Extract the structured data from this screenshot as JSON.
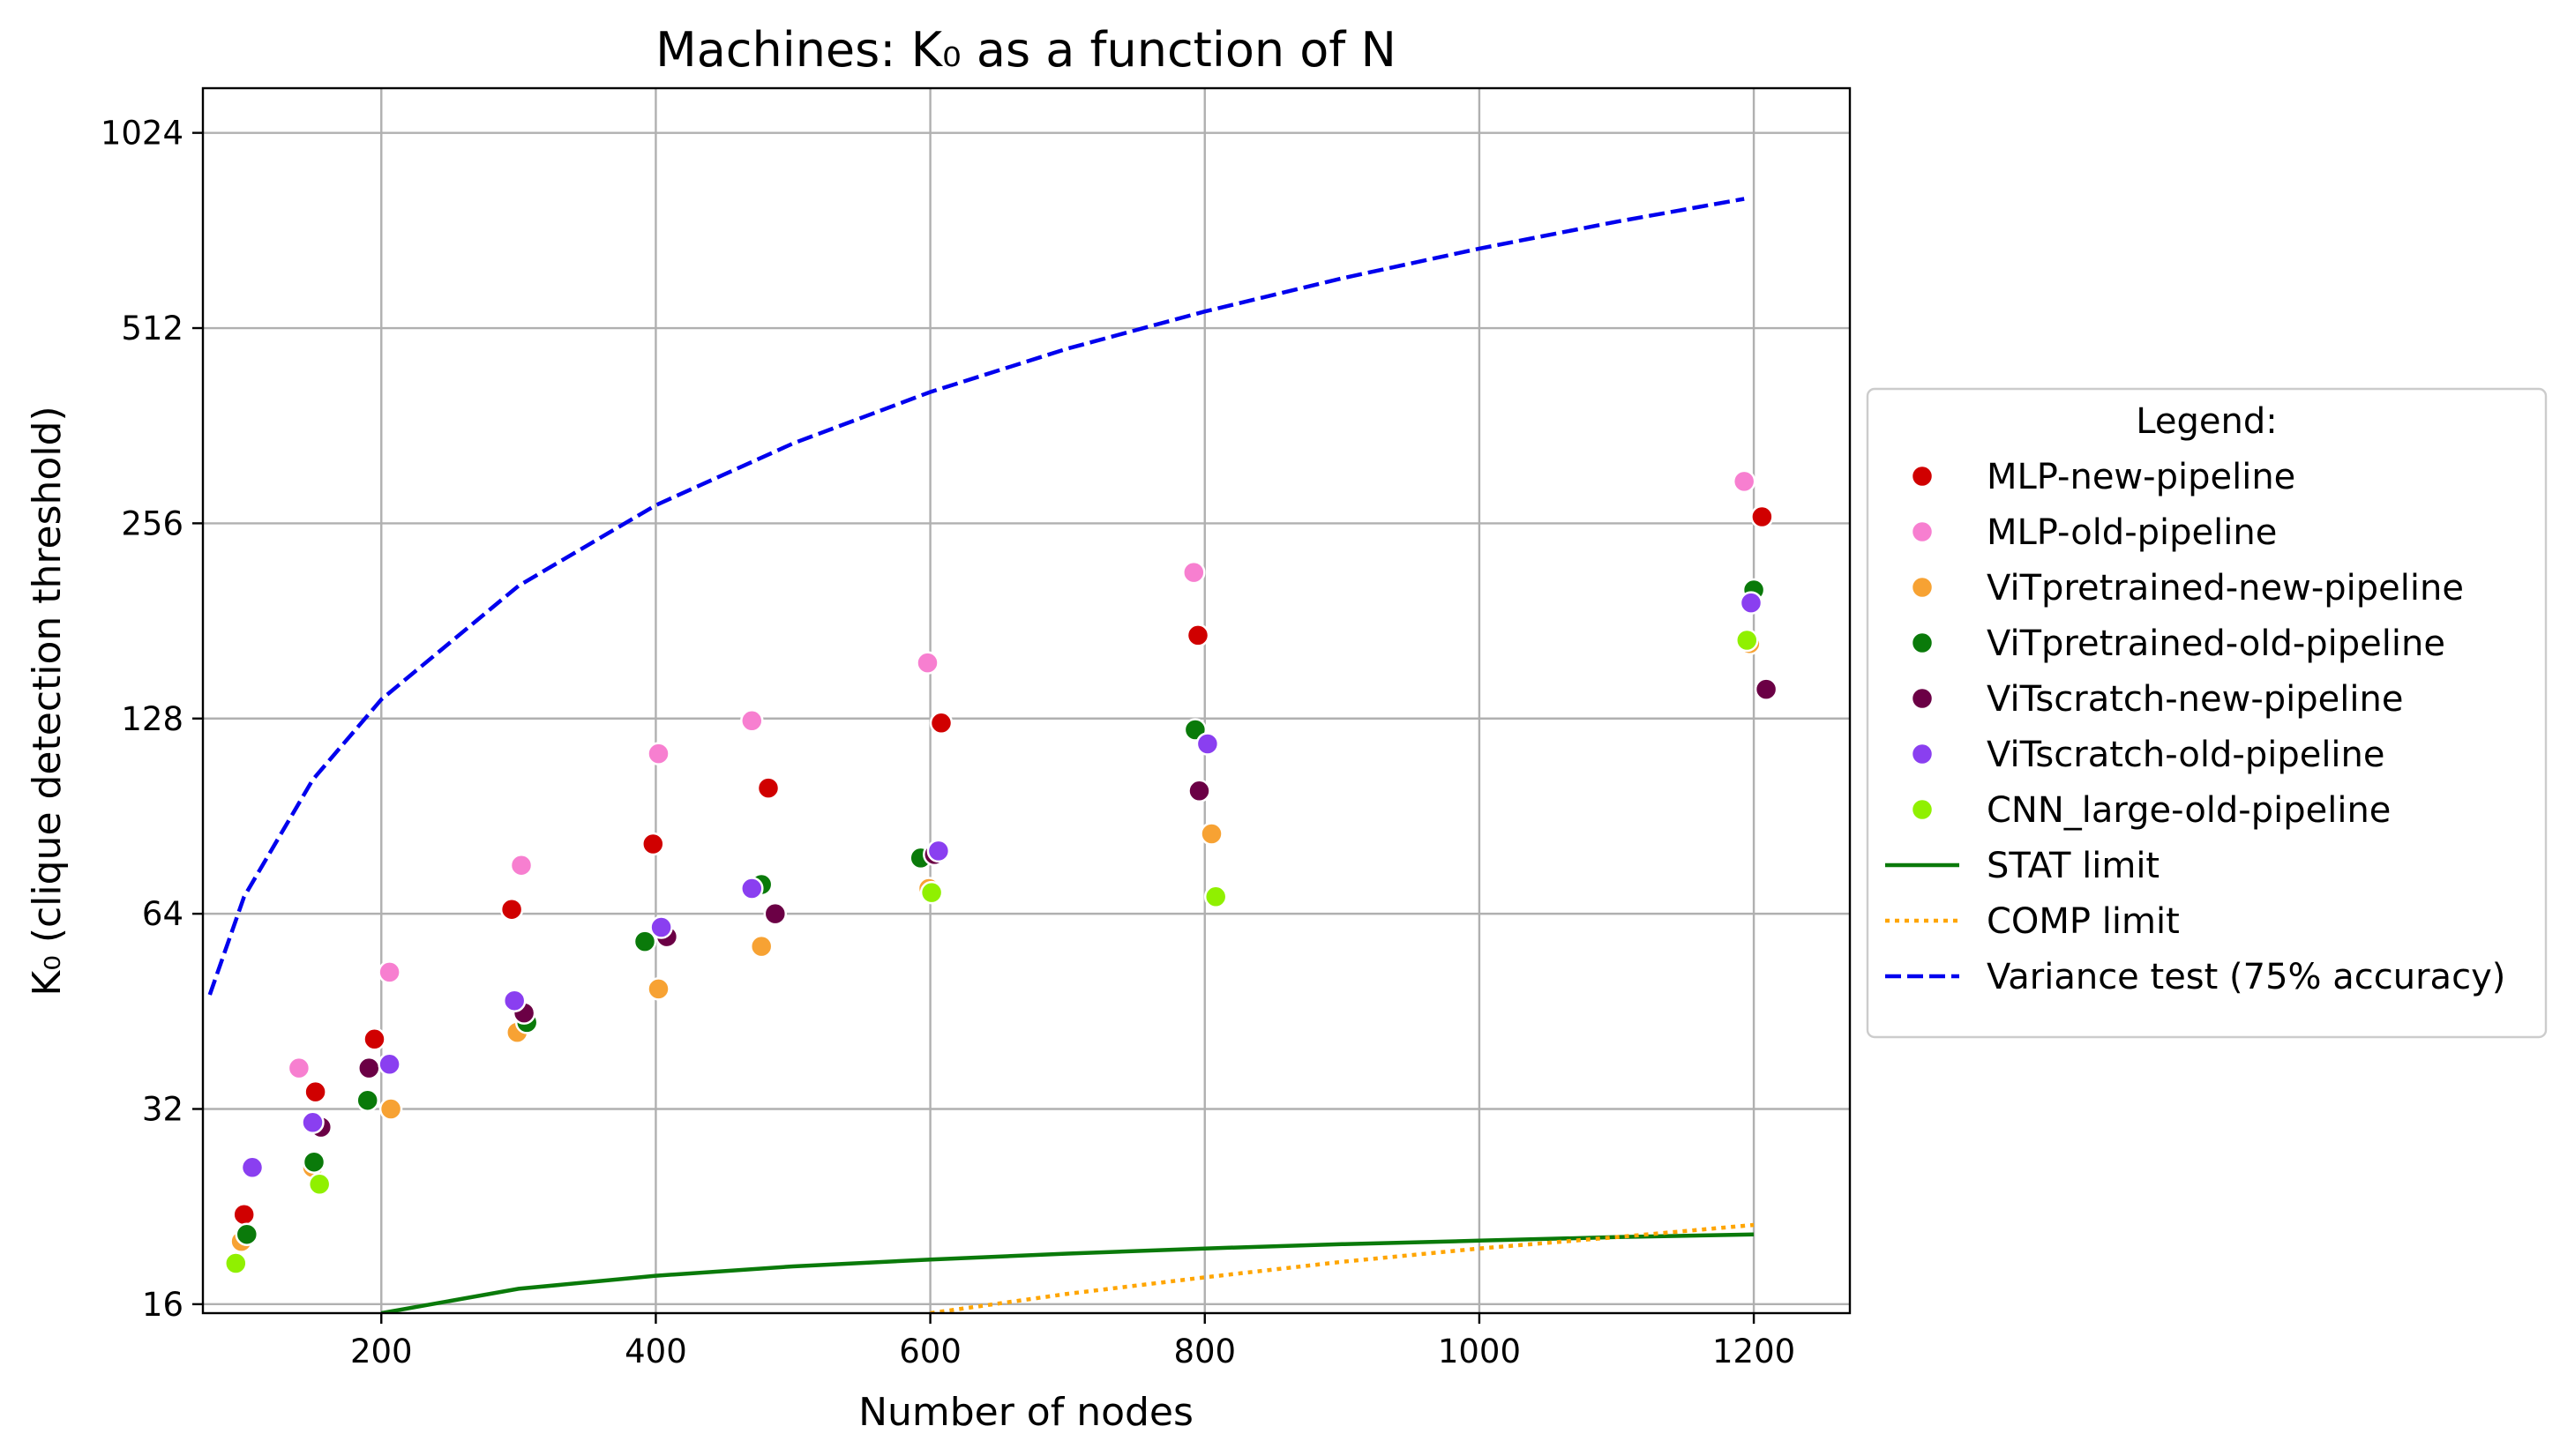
{
  "chart_data": {
    "type": "scatter",
    "title": "Machines: K₀ as a function of N",
    "xlabel": "Number of nodes",
    "ylabel": "K₀ (clique detection threshold)",
    "xlim": [
      70,
      1270
    ],
    "ylim_log2": [
      15.5,
      1200
    ],
    "y_scale": "log2",
    "grid": true,
    "xticks": [
      200,
      400,
      600,
      800,
      1000,
      1200
    ],
    "xtick_labels": [
      "200",
      "400",
      "600",
      "800",
      "1000",
      "1200"
    ],
    "yticks": [
      16,
      32,
      64,
      128,
      256,
      512,
      1024
    ],
    "ytick_labels": [
      "16",
      "32",
      "64",
      "128",
      "256",
      "512",
      "1024"
    ],
    "legend": {
      "title": "Legend:",
      "placement": "center-right, outside plot"
    },
    "series": [
      {
        "name": "MLP-new-pipeline",
        "kind": "scatter",
        "color": "#d00000",
        "points": [
          [
            100,
            22
          ],
          [
            152,
            34
          ],
          [
            195,
            41
          ],
          [
            295,
            65
          ],
          [
            398,
            82
          ],
          [
            482,
            100
          ],
          [
            608,
            126
          ],
          [
            795,
            172
          ],
          [
            1206,
            262
          ]
        ]
      },
      {
        "name": "MLP-old-pipeline",
        "kind": "scatter",
        "color": "#f77fd0",
        "points": [
          [
            140,
            37
          ],
          [
            206,
            52
          ],
          [
            302,
            76
          ],
          [
            402,
            113
          ],
          [
            470,
            127
          ],
          [
            598,
            156
          ],
          [
            792,
            215
          ],
          [
            1193,
            297
          ]
        ]
      },
      {
        "name": "ViTpretrained-new-pipeline",
        "kind": "scatter",
        "color": "#f7a233",
        "points": [
          [
            98,
            20
          ],
          [
            150,
            26
          ],
          [
            207,
            32
          ],
          [
            299,
            42
          ],
          [
            402,
            49
          ],
          [
            477,
            57
          ],
          [
            599,
            70
          ],
          [
            805,
            85
          ],
          [
            1197,
            167
          ]
        ]
      },
      {
        "name": "ViTpretrained-old-pipeline",
        "kind": "scatter",
        "color": "#0a7a0a",
        "points": [
          [
            102,
            20.5
          ],
          [
            151,
            26.5
          ],
          [
            190,
            33
          ],
          [
            306,
            43.5
          ],
          [
            392,
            58
          ],
          [
            477,
            71
          ],
          [
            593,
            78
          ],
          [
            793,
            123
          ],
          [
            1200,
            202
          ]
        ]
      },
      {
        "name": "ViTscratch-new-pipeline",
        "kind": "scatter",
        "color": "#6b0045",
        "points": [
          [
            156,
            30
          ],
          [
            191,
            37
          ],
          [
            304,
            45
          ],
          [
            408,
            59
          ],
          [
            487,
            64
          ],
          [
            603,
            79
          ],
          [
            796,
            99
          ],
          [
            1209,
            142
          ]
        ]
      },
      {
        "name": "ViTscratch-old-pipeline",
        "kind": "scatter",
        "color": "#8a3ff0",
        "points": [
          [
            106,
            26
          ],
          [
            150,
            30.5
          ],
          [
            206,
            37.5
          ],
          [
            297,
            47
          ],
          [
            404,
            61
          ],
          [
            470,
            70
          ],
          [
            606,
            80
          ],
          [
            802,
            117
          ],
          [
            1198,
            193
          ]
        ]
      },
      {
        "name": "CNN_large-old-pipeline",
        "kind": "scatter",
        "color": "#90f000",
        "points": [
          [
            94,
            18.5
          ],
          [
            155,
            24.5
          ],
          [
            601,
            69
          ],
          [
            808,
            68
          ],
          [
            1195,
            169
          ]
        ]
      },
      {
        "name": "STAT limit",
        "kind": "line",
        "color": "#0a7a0a",
        "dash": "solid",
        "points": [
          [
            200,
            15.5
          ],
          [
            300,
            16.9
          ],
          [
            400,
            17.7
          ],
          [
            500,
            18.3
          ],
          [
            600,
            18.75
          ],
          [
            700,
            19.15
          ],
          [
            800,
            19.5
          ],
          [
            900,
            19.8
          ],
          [
            1000,
            20.05
          ],
          [
            1100,
            20.3
          ],
          [
            1200,
            20.5
          ]
        ]
      },
      {
        "name": "COMP limit",
        "kind": "line",
        "color": "#ffa500",
        "dash": "dotted",
        "points": [
          [
            600,
            15.5
          ],
          [
            700,
            16.6
          ],
          [
            800,
            17.6
          ],
          [
            900,
            18.6
          ],
          [
            1000,
            19.5
          ],
          [
            1100,
            20.3
          ],
          [
            1200,
            21.2
          ]
        ]
      },
      {
        "name": "Variance test (75% accuracy)",
        "kind": "line",
        "color": "#0000ee",
        "dash": "dashed",
        "points": [
          [
            75,
            48
          ],
          [
            100,
            68
          ],
          [
            150,
            103
          ],
          [
            200,
            137
          ],
          [
            300,
            205
          ],
          [
            400,
            273
          ],
          [
            500,
            340
          ],
          [
            600,
            408
          ],
          [
            700,
            476
          ],
          [
            800,
            543
          ],
          [
            900,
            611
          ],
          [
            1000,
            679
          ],
          [
            1100,
            747
          ],
          [
            1193,
            810
          ]
        ]
      }
    ]
  }
}
